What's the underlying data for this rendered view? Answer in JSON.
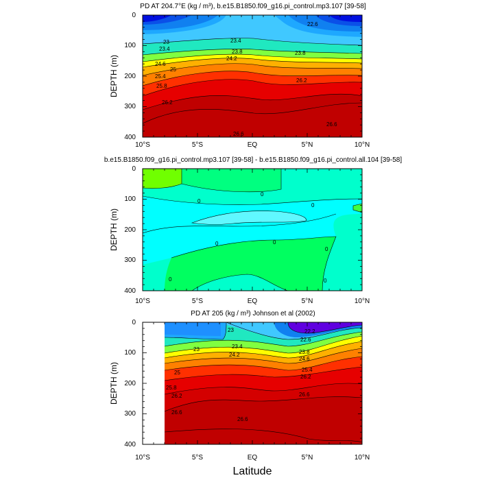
{
  "chart_data": [
    {
      "type": "contour",
      "title": "PD AT 204.7°E (kg / m³), b.e15.B1850.f09_g16.pi_control.mp3.107 [39-58]",
      "ylabel": "DEPTH (m)",
      "xlabel": "",
      "xticklabels": [
        "10°S",
        "5°S",
        "EQ",
        "5°N",
        "10°N"
      ],
      "yticklabels": [
        "0",
        "100",
        "200",
        "300",
        "400"
      ],
      "xlim": [
        -10,
        10
      ],
      "ylim": [
        400,
        0
      ],
      "contour_labels": [
        "22.6",
        "23",
        "23.4",
        "23.4",
        "23.8",
        "23.8",
        "24.2",
        "24.6",
        "25",
        "25.4",
        "25.8",
        "26.2",
        "26.2",
        "26.6",
        "26.6"
      ],
      "colors": [
        "#0010e8",
        "#0a60f0",
        "#1e90ff",
        "#40c8ff",
        "#60ff60",
        "#ffff00",
        "#ffa000",
        "#ff4000",
        "#e00000",
        "#c00000"
      ]
    },
    {
      "type": "contour",
      "title": "b.e15.B1850.f09_g16.pi_control.mp3.107 [39-58] - b.e15.B1850.f09_g16.pi_control.all.104 [39-58]",
      "ylabel": "DEPTH (m)",
      "xlabel": "",
      "xticklabels": [
        "10°S",
        "5°S",
        "EQ",
        "5°N",
        "10°N"
      ],
      "yticklabels": [
        "0",
        "100",
        "200",
        "300",
        "400"
      ],
      "xlim": [
        -10,
        10
      ],
      "ylim": [
        400,
        0
      ],
      "contour_labels": [
        "0",
        "0",
        "0",
        "0",
        "0",
        "0",
        "0",
        "0"
      ],
      "colors": [
        "#00ffff",
        "#00ffcc",
        "#00ff60",
        "#70ff00"
      ]
    },
    {
      "type": "contour",
      "title": "PD AT 205 (kg / m³) Johnson et al (2002)",
      "ylabel": "DEPTH (m)",
      "xlabel": "Latitude",
      "xticklabels": [
        "10°S",
        "5°S",
        "EQ",
        "5°N",
        "10°N"
      ],
      "yticklabels": [
        "0",
        "100",
        "200",
        "300",
        "400"
      ],
      "xlim": [
        -10,
        10
      ],
      "ylim": [
        400,
        0
      ],
      "data_xrange": [
        -8,
        10
      ],
      "contour_labels": [
        "22.2",
        "22.6",
        "23",
        "23",
        "23.4",
        "23.8",
        "24.2",
        "24.6",
        "25",
        "25.4",
        "25.8",
        "26.2",
        "26.2",
        "26.6",
        "26.6",
        "26.6"
      ],
      "colors": [
        "#6000e0",
        "#0a60f0",
        "#1e90ff",
        "#40c8ff",
        "#60ff60",
        "#ffff00",
        "#ffa000",
        "#ff4000",
        "#e00000",
        "#c00000"
      ]
    }
  ]
}
